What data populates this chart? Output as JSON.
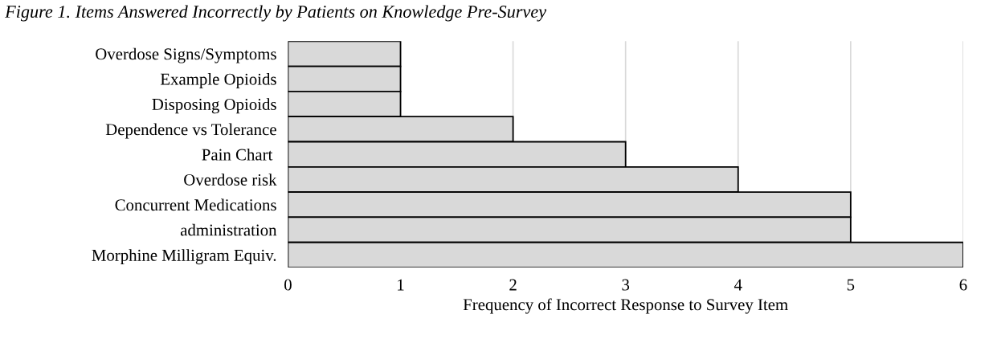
{
  "chart_data": {
    "type": "bar",
    "orientation": "horizontal",
    "title": "Figure 1. Items Answered Incorrectly by Patients on Knowledge Pre-Survey",
    "xlabel": "Frequency of Incorrect Response to Survey Item",
    "categories": [
      "Overdose Signs/Symptoms",
      "Example Opioids",
      "Disposing Opioids",
      "Dependence vs Tolerance",
      "Pain Chart ",
      "Overdose risk",
      "Concurrent Medications",
      "administration",
      "Morphine Milligram Equiv."
    ],
    "values": [
      1,
      1,
      1,
      2,
      3,
      4,
      5,
      5,
      6
    ],
    "color": "#d9d9d9",
    "xlim": [
      0,
      6
    ],
    "xticks": [
      0,
      1,
      2,
      3,
      4,
      5,
      6
    ],
    "grid": "x"
  }
}
